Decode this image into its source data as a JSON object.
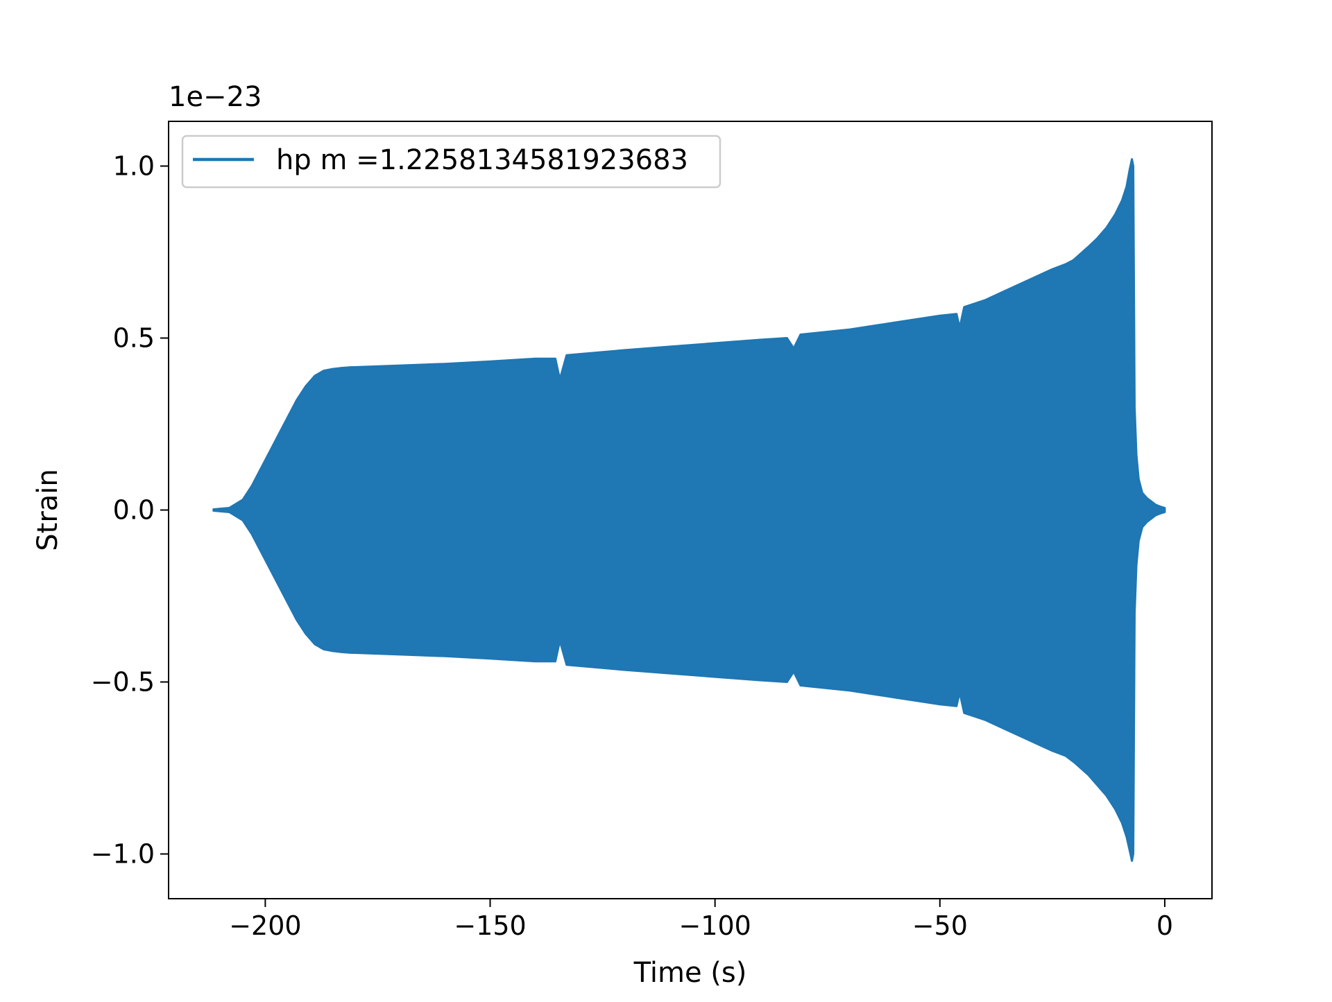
{
  "chart_data": {
    "type": "line",
    "title": "",
    "xlabel": "Time (s)",
    "ylabel": "Strain",
    "y_offset_label": "1e−23",
    "xlim": [
      -221.5,
      10.5
    ],
    "ylim": [
      -1.13,
      1.13
    ],
    "xticks": [
      -200,
      -150,
      -100,
      -50,
      0
    ],
    "xtick_labels": [
      "−200",
      "−150",
      "−100",
      "−50",
      "0"
    ],
    "yticks": [
      -1.0,
      -0.5,
      0.0,
      0.5,
      1.0
    ],
    "ytick_labels": [
      "−1.0",
      "−0.5",
      "0.0",
      "0.5",
      "1.0"
    ],
    "grid": false,
    "legend_position": "upper-left",
    "series": [
      {
        "name": "hp m =1.2258134581923683",
        "color": "#1f77b4",
        "envelope": {
          "t": [
            -211.5,
            -208,
            -205,
            -203,
            -201,
            -199,
            -197,
            -195,
            -193,
            -191,
            -189,
            -187,
            -185,
            -183,
            -181,
            -170,
            -160,
            -150,
            -140,
            -135.5,
            -134.5,
            -133,
            -120,
            -110,
            -100,
            -90,
            -84,
            -82.5,
            -81,
            -70,
            -60,
            -50,
            -46.3,
            -45.6,
            -44.6,
            -40,
            -35,
            -30,
            -25,
            -22,
            -20.5,
            -20,
            -17,
            -15,
            -13,
            -11,
            -9.5,
            -8.5,
            -7.8,
            -7.3,
            -7.0,
            -6.7,
            -6.3,
            -5.8,
            -5,
            -4,
            -3,
            -2,
            -1,
            0
          ],
          "upper": [
            0.002,
            0.006,
            0.03,
            0.07,
            0.12,
            0.17,
            0.22,
            0.27,
            0.32,
            0.36,
            0.39,
            0.405,
            0.41,
            0.413,
            0.415,
            0.42,
            0.425,
            0.432,
            0.44,
            0.44,
            0.38,
            0.45,
            0.465,
            0.475,
            0.485,
            0.495,
            0.5,
            0.47,
            0.51,
            0.525,
            0.545,
            0.565,
            0.57,
            0.53,
            0.59,
            0.61,
            0.64,
            0.67,
            0.7,
            0.715,
            0.725,
            0.73,
            0.765,
            0.79,
            0.82,
            0.86,
            0.9,
            0.94,
            0.99,
            1.02,
            1.0,
            0.3,
            0.16,
            0.09,
            0.05,
            0.035,
            0.025,
            0.015,
            0.01,
            0.006
          ],
          "lower": [
            -0.002,
            -0.006,
            -0.03,
            -0.07,
            -0.12,
            -0.17,
            -0.22,
            -0.27,
            -0.32,
            -0.36,
            -0.39,
            -0.405,
            -0.41,
            -0.413,
            -0.415,
            -0.42,
            -0.425,
            -0.432,
            -0.44,
            -0.44,
            -0.38,
            -0.45,
            -0.465,
            -0.475,
            -0.485,
            -0.495,
            -0.5,
            -0.47,
            -0.51,
            -0.525,
            -0.545,
            -0.565,
            -0.57,
            -0.53,
            -0.59,
            -0.61,
            -0.64,
            -0.67,
            -0.7,
            -0.715,
            -0.73,
            -0.735,
            -0.77,
            -0.8,
            -0.83,
            -0.87,
            -0.91,
            -0.95,
            -0.99,
            -1.02,
            -1.0,
            -0.3,
            -0.16,
            -0.09,
            -0.05,
            -0.035,
            -0.025,
            -0.015,
            -0.01,
            -0.006
          ]
        }
      }
    ]
  }
}
